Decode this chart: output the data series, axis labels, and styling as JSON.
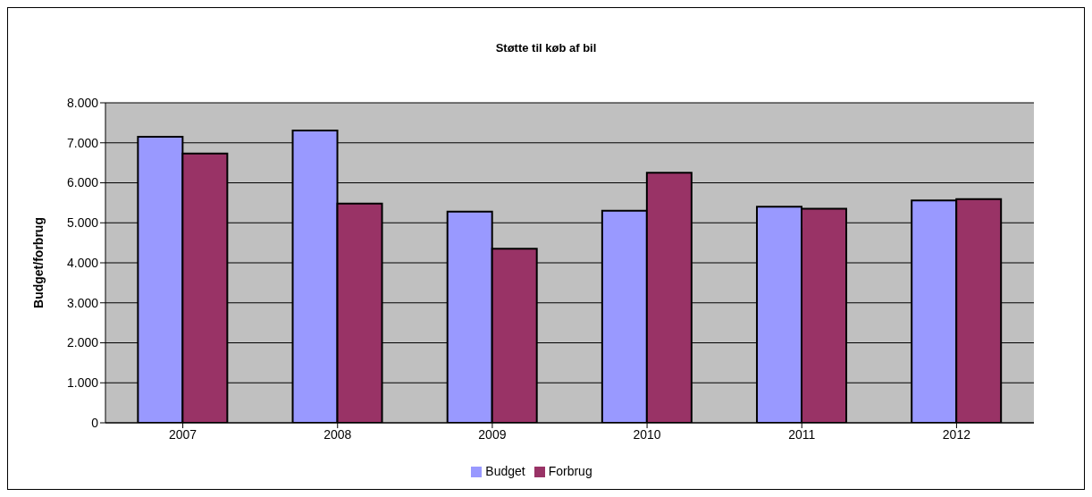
{
  "chart_data": {
    "type": "bar",
    "title": "Støtte til køb af bil",
    "ylabel": "Budget/forbrug",
    "categories": [
      "2007",
      "2008",
      "2009",
      "2010",
      "2011",
      "2012"
    ],
    "series": [
      {
        "name": "Budget",
        "color": "#9999ff",
        "values": [
          7150,
          7310,
          5280,
          5300,
          5400,
          5560
        ]
      },
      {
        "name": "Forbrug",
        "color": "#993366",
        "values": [
          6730,
          5480,
          4350,
          6250,
          5350,
          5590
        ]
      }
    ],
    "ylim": [
      0,
      8000
    ],
    "yticks": [
      {
        "value": 0,
        "label": "0"
      },
      {
        "value": 1000,
        "label": "1.000"
      },
      {
        "value": 2000,
        "label": "2.000"
      },
      {
        "value": 3000,
        "label": "3.000"
      },
      {
        "value": 4000,
        "label": "4.000"
      },
      {
        "value": 5000,
        "label": "5.000"
      },
      {
        "value": 6000,
        "label": "6.000"
      },
      {
        "value": 7000,
        "label": "7.000"
      },
      {
        "value": 8000,
        "label": "8.000"
      }
    ],
    "grid": "y",
    "legend": "bottom"
  }
}
